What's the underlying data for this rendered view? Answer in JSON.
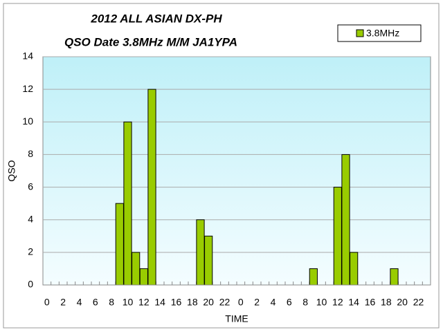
{
  "chart_data": {
    "type": "bar",
    "title": [
      "2012 ALL ASIAN DX-PH",
      "QSO Date 3.8MHz M/M JA1YPA"
    ],
    "x_label": "TIME",
    "y_label": "QSO",
    "categories": [
      "0",
      null,
      "2",
      null,
      "4",
      null,
      "6",
      null,
      "8",
      null,
      "10",
      null,
      "12",
      null,
      "14",
      null,
      "16",
      null,
      "18",
      null,
      "20",
      null,
      "22",
      null,
      "0",
      null,
      "2",
      null,
      "4",
      null,
      "6",
      null,
      "8",
      null,
      "10",
      null,
      "12",
      null,
      "14",
      null,
      "16",
      null,
      "18",
      null,
      "20",
      null,
      "22",
      null
    ],
    "series": [
      {
        "name": "3.8MHz",
        "color": "#99cc00",
        "values": [
          0,
          0,
          0,
          0,
          0,
          0,
          0,
          0,
          0,
          5,
          10,
          2,
          1,
          12,
          0,
          0,
          0,
          0,
          0,
          4,
          3,
          0,
          0,
          0,
          0,
          0,
          0,
          0,
          0,
          0,
          0,
          0,
          0,
          1,
          0,
          0,
          6,
          8,
          2,
          0,
          0,
          0,
          0,
          1,
          0,
          0,
          0,
          0
        ]
      }
    ],
    "ylim": [
      0,
      14
    ],
    "yticks": [
      0,
      2,
      4,
      6,
      8,
      10,
      12,
      14
    ],
    "grid": true,
    "legend": "upper right"
  }
}
